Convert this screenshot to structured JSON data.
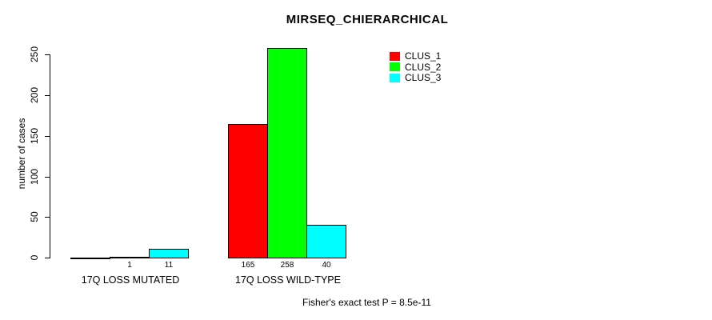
{
  "title": "MIRSEQ_CHIERARCHICAL",
  "footer": "Fisher's exact test P = 8.5e-11",
  "colors": {
    "background": "#FFFFFF",
    "axis": "#000000",
    "text": "#000000",
    "clus_1": "#FF0000",
    "clus_2": "#00FF00",
    "clus_3": "#00FFFF"
  },
  "chart_data": {
    "type": "bar",
    "title": "MIRSEQ_CHIERARCHICAL",
    "xlabel": "",
    "ylabel": "number of cases",
    "ylim": [
      0,
      250
    ],
    "yticks": [
      0,
      50,
      100,
      150,
      200,
      250
    ],
    "grid": false,
    "legend_position": "top-right",
    "categories": [
      "17Q LOSS MUTATED",
      "17Q LOSS WILD-TYPE"
    ],
    "series": [
      {
        "name": "CLUS_1",
        "color": "#FF0000",
        "values": [
          0,
          165
        ],
        "value_labels": [
          "",
          "165"
        ]
      },
      {
        "name": "CLUS_2",
        "color": "#00FF00",
        "values": [
          1,
          258
        ],
        "value_labels": [
          "1",
          "258"
        ]
      },
      {
        "name": "CLUS_3",
        "color": "#00FFFF",
        "values": [
          11,
          40
        ],
        "value_labels": [
          "11",
          "40"
        ]
      }
    ],
    "annotation": "Fisher's exact test P = 8.5e-11"
  }
}
